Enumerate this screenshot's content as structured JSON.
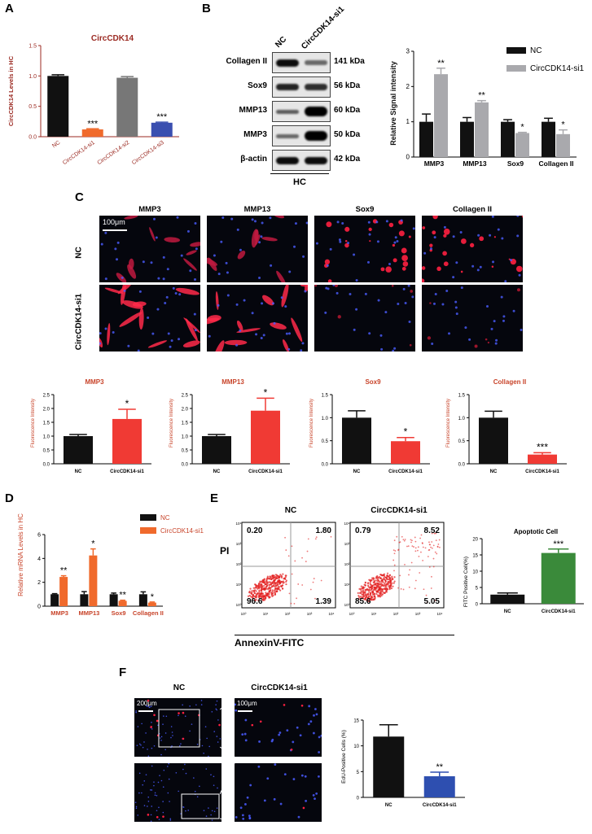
{
  "panels": {
    "A": {
      "letter": "A",
      "title": "CircCDK14",
      "chart_data": {
        "type": "bar",
        "categories": [
          "NC",
          "CircCDK14-si1",
          "CircCDK14-si2",
          "CircCDK14-si3"
        ],
        "values": [
          1.0,
          0.12,
          0.97,
          0.23
        ],
        "errors": [
          0.02,
          0.01,
          0.02,
          0.01
        ],
        "significance": [
          "",
          "***",
          "",
          "***"
        ],
        "colors": [
          "#111111",
          "#f06a2c",
          "#777777",
          "#3a4fb0"
        ],
        "ylabel": "CircCDK14 Levels in HC",
        "ylim": [
          0,
          1.5
        ],
        "yticks": [
          "0.0",
          "0.5",
          "1.0",
          "1.5"
        ]
      }
    },
    "B": {
      "letter": "B",
      "blot": {
        "lanes": [
          "NC",
          "CircCDK14-si1"
        ],
        "proteins": [
          "Collagen II",
          "Sox9",
          "MMP13",
          "MMP3",
          "β-actin"
        ],
        "sizes": [
          "141 kDa",
          "56 kDa",
          "60 kDa",
          "50 kDa",
          "42 kDa"
        ],
        "footer": "HC"
      },
      "chart_data": {
        "type": "bar",
        "categories": [
          "MMP3",
          "MMP13",
          "Sox9",
          "Collagen II"
        ],
        "series": [
          {
            "name": "NC",
            "values": [
              1.0,
              1.0,
              1.0,
              1.0
            ],
            "errors": [
              0.22,
              0.12,
              0.06,
              0.1
            ],
            "color": "#111111"
          },
          {
            "name": "CircCDK14-si1",
            "values": [
              2.35,
              1.55,
              0.68,
              0.65
            ],
            "errors": [
              0.17,
              0.05,
              0.02,
              0.12
            ],
            "color": "#a9a9ad"
          }
        ],
        "significance": [
          "**",
          "**",
          "*",
          "*"
        ],
        "ylabel": "Relative Signal intensity",
        "ylim": [
          0,
          3
        ],
        "yticks": [
          "0",
          "1",
          "2",
          "3"
        ]
      }
    },
    "C": {
      "letter": "C",
      "columns": [
        "MMP3",
        "MMP13",
        "Sox9",
        "Collagen II"
      ],
      "rows": [
        "NC",
        "CircCDK14-si1"
      ],
      "scale": "100μm",
      "charts": [
        {
          "type": "bar",
          "title": "MMP3",
          "categories": [
            "NC",
            "CircCDK14-si1"
          ],
          "values": [
            1.0,
            1.62
          ],
          "errors": [
            0.06,
            0.35
          ],
          "significance": "*",
          "ylabel": "Fluorescence Intensity",
          "ylim": [
            0,
            2.5
          ],
          "yticks": [
            "0.0",
            "0.5",
            "1.0",
            "1.5",
            "2.0",
            "2.5"
          ]
        },
        {
          "type": "bar",
          "title": "MMP13",
          "categories": [
            "NC",
            "CircCDK14-si1"
          ],
          "values": [
            1.0,
            1.92
          ],
          "errors": [
            0.06,
            0.45
          ],
          "significance": "*",
          "ylabel": "Fluorescence Intensity",
          "ylim": [
            0,
            2.5
          ],
          "yticks": [
            "0.0",
            "0.5",
            "1.0",
            "1.5",
            "2.0",
            "2.5"
          ]
        },
        {
          "type": "bar",
          "title": "Sox9",
          "categories": [
            "NC",
            "CircCDK14-si1"
          ],
          "values": [
            1.0,
            0.49
          ],
          "errors": [
            0.15,
            0.08
          ],
          "significance": "*",
          "ylabel": "Fluorescence Intensity",
          "ylim": [
            0,
            1.5
          ],
          "yticks": [
            "0.0",
            "0.5",
            "1.0",
            "1.5"
          ]
        },
        {
          "type": "bar",
          "title": "Collagen II",
          "categories": [
            "NC",
            "CircCDK14-si1"
          ],
          "values": [
            1.0,
            0.2
          ],
          "errors": [
            0.14,
            0.04
          ],
          "significance": "***",
          "ylabel": "Fluorescence Intensity",
          "ylim": [
            0,
            1.5
          ],
          "yticks": [
            "0.0",
            "0.5",
            "1.0",
            "1.5"
          ]
        }
      ]
    },
    "D": {
      "letter": "D",
      "chart_data": {
        "type": "bar",
        "categories": [
          "MMP3",
          "MMP13",
          "Sox9",
          "Collagen II"
        ],
        "series": [
          {
            "name": "NC",
            "values": [
              1.0,
              1.0,
              1.0,
              1.0
            ],
            "errors": [
              0.05,
              0.22,
              0.1,
              0.2
            ],
            "color": "#111111"
          },
          {
            "name": "CircCDK14-si1",
            "values": [
              2.45,
              4.25,
              0.45,
              0.3
            ],
            "errors": [
              0.1,
              0.55,
              0.05,
              0.05
            ],
            "color": "#f06a2c"
          }
        ],
        "significance": [
          "**",
          "*",
          "**",
          "*"
        ],
        "ylabel": "Relative mRNA Levels in HC",
        "ylim": [
          0,
          6
        ],
        "yticks": [
          "0",
          "2",
          "4",
          "6"
        ]
      }
    },
    "E": {
      "letter": "E",
      "flow": {
        "plots": [
          {
            "label": "NC",
            "q": [
              "0.20",
              "1.80",
              "96.6",
              "1.39"
            ]
          },
          {
            "label": "CircCDK14-si1",
            "q": [
              "0.79",
              "8.52",
              "85.6",
              "5.05"
            ]
          }
        ],
        "ylabel": "PI",
        "xlabel": "AnnexinV-FITC",
        "ticks": [
          "10⁰",
          "10¹",
          "10²",
          "10³",
          "10⁴"
        ]
      },
      "chart_data": {
        "type": "bar",
        "title": "Apoptotic Cell",
        "categories": [
          "NC",
          "CircCDK14-si1"
        ],
        "values": [
          2.8,
          15.6
        ],
        "errors": [
          0.5,
          1.2
        ],
        "significance": "***",
        "colors": [
          "#111111",
          "#3a8a3a"
        ],
        "ylabel": "FITC Positive Cell(%)",
        "ylim": [
          0,
          20
        ],
        "yticks": [
          "0",
          "5",
          "10",
          "15",
          "20"
        ]
      }
    },
    "F": {
      "letter": "F",
      "columns": [
        "NC",
        "CircCDK14-si1"
      ],
      "scales": [
        "200μm",
        "100μm"
      ],
      "chart_data": {
        "type": "bar",
        "categories": [
          "NC",
          "CircCDK14-si1"
        ],
        "values": [
          11.8,
          4.1
        ],
        "errors": [
          2.3,
          0.8
        ],
        "significance": "**",
        "colors": [
          "#111111",
          "#2e4fb0"
        ],
        "ylabel": "EdU-Positive Cells (%)",
        "ylim": [
          0,
          15
        ],
        "yticks": [
          "0",
          "5",
          "10",
          "15"
        ]
      }
    }
  }
}
